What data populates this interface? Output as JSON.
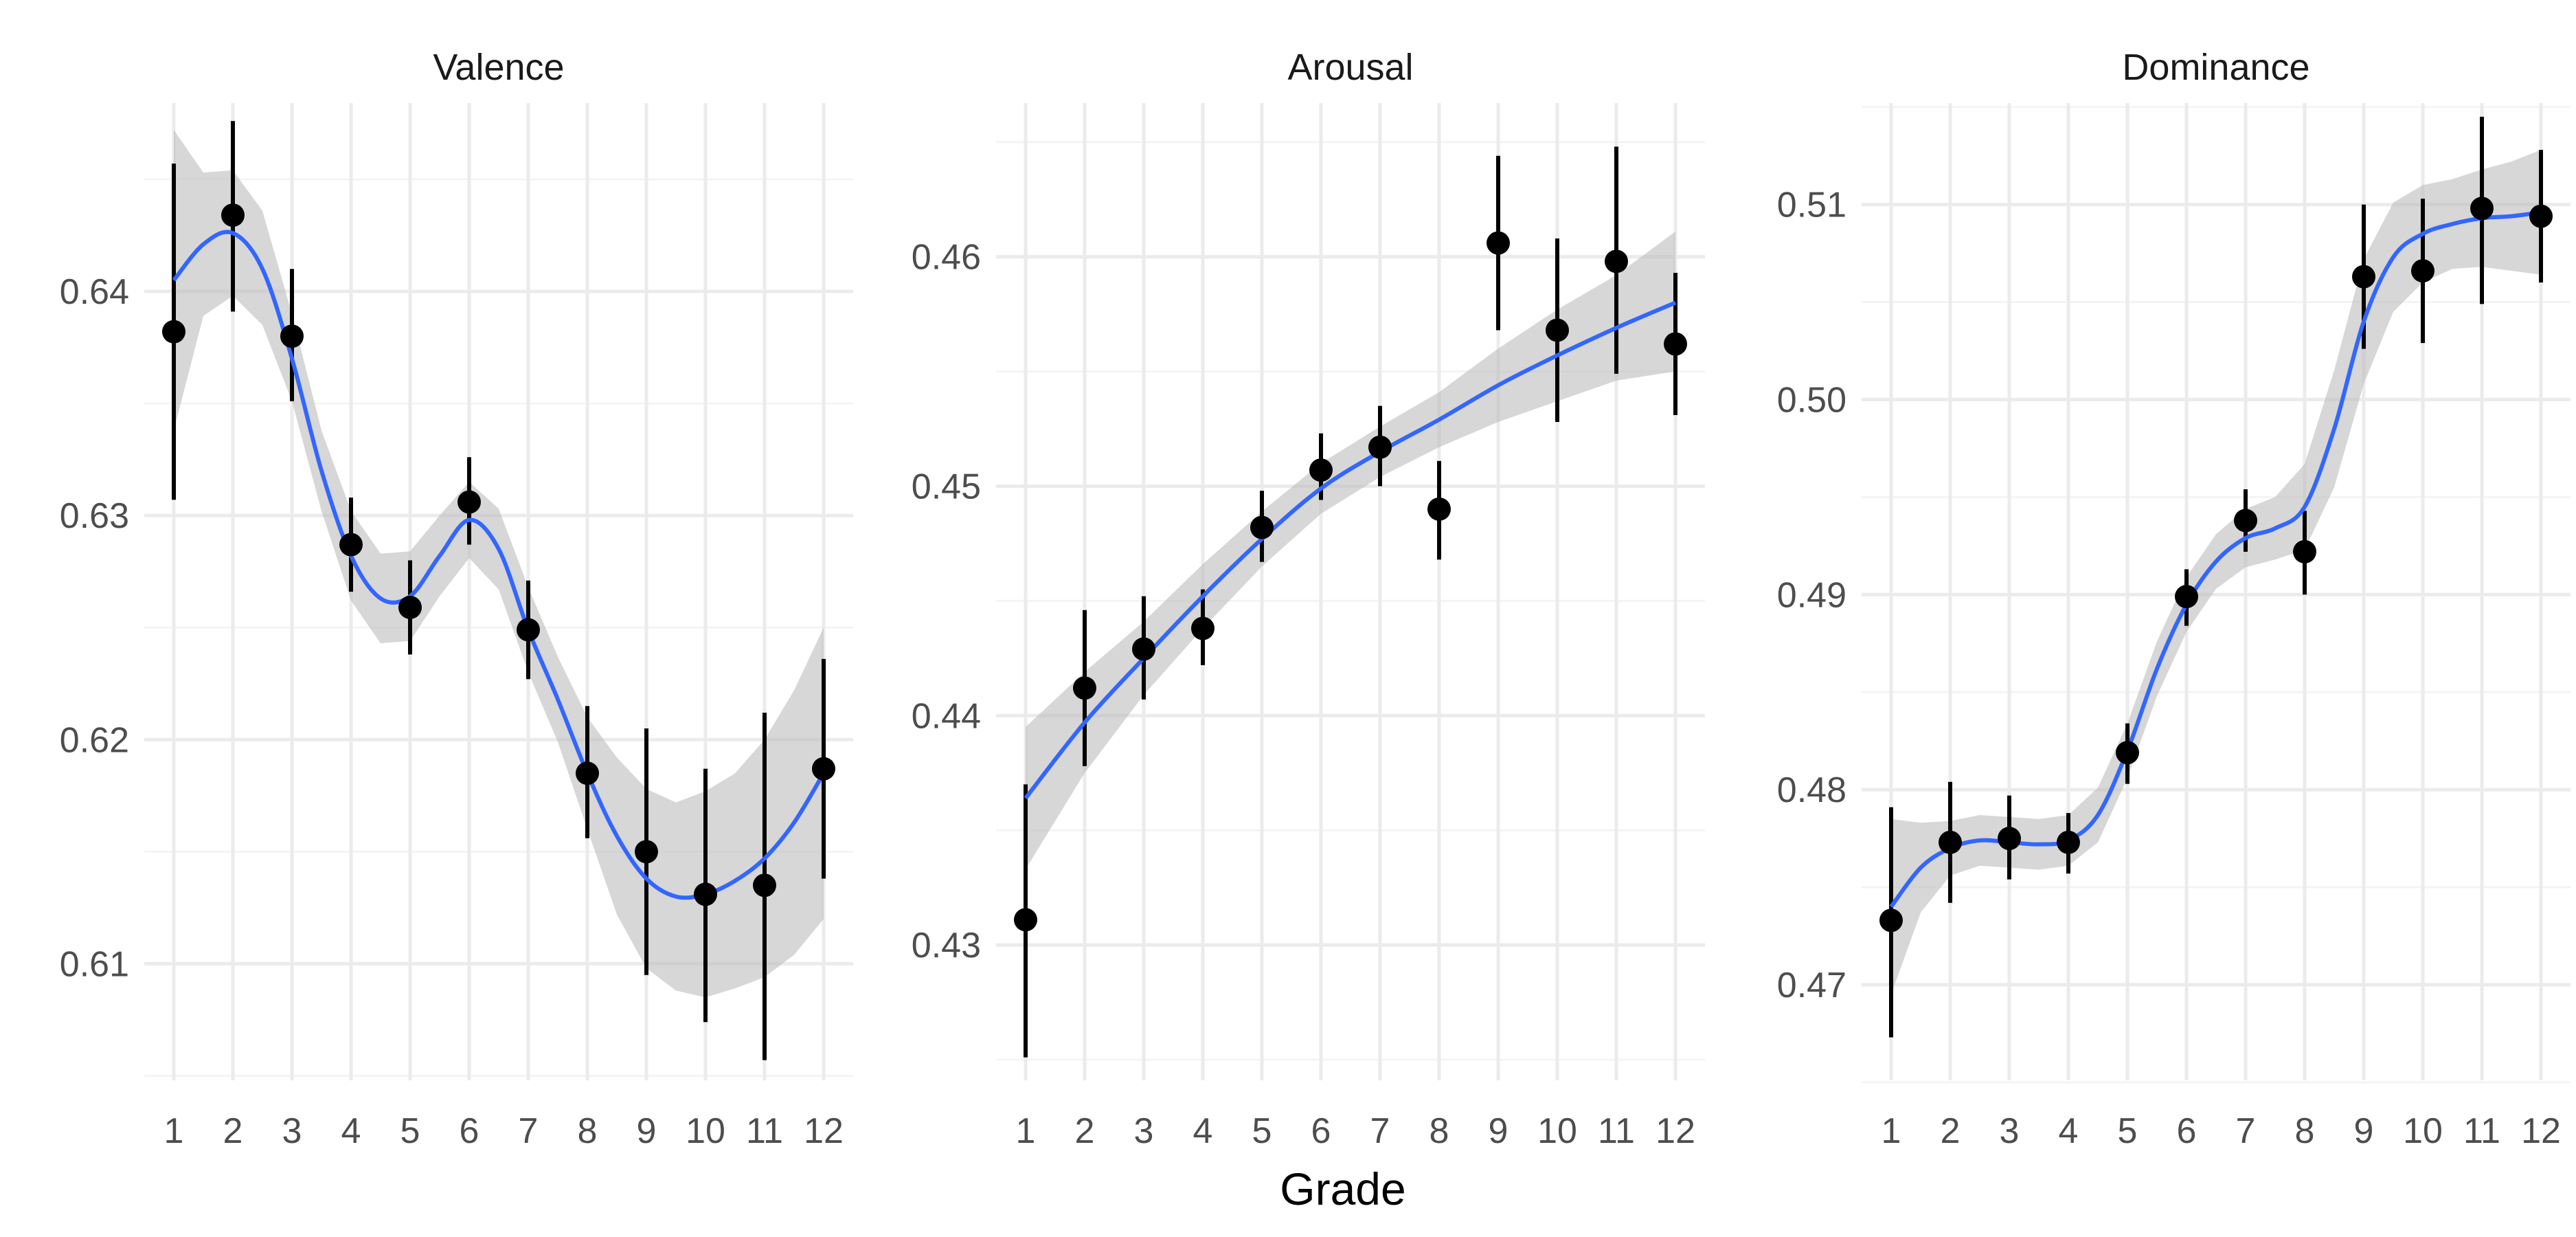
{
  "xlabel": "Grade",
  "colors": {
    "background": "#ffffff",
    "grid_major": "#ebebeb",
    "grid_minor": "#f4f4f4",
    "points": "#000000",
    "error_bars": "#000000",
    "smooth_line": "#3366ff",
    "ribbon": "#bdbdbd",
    "text": "#4d4d4d",
    "strip_text": "#1a1a1a"
  },
  "chart_data": [
    {
      "type": "scatter",
      "title": "Valence",
      "x": [
        1,
        2,
        3,
        4,
        5,
        6,
        7,
        8,
        9,
        10,
        11,
        12
      ],
      "x_tick_labels": [
        "1",
        "2",
        "3",
        "4",
        "5",
        "6",
        "7",
        "8",
        "9",
        "10",
        "11",
        "12"
      ],
      "xlim": [
        0.5,
        12.5
      ],
      "ylim": [
        0.6048,
        0.6484
      ],
      "y_ticks": [
        0.61,
        0.62,
        0.63,
        0.64
      ],
      "y_tick_labels": [
        "0.61",
        "0.62",
        "0.63",
        "0.64"
      ],
      "y_minor_ticks": [
        0.605,
        0.615,
        0.625,
        0.635,
        0.645
      ],
      "series": [
        {
          "kind": "points_with_error_bars",
          "values": [
            0.6382,
            0.6434,
            0.638,
            0.6287,
            0.6259,
            0.6306,
            0.6249,
            0.6185,
            0.615,
            0.6131,
            0.6135,
            0.6187
          ],
          "lower": [
            0.6307,
            0.6391,
            0.6351,
            0.6266,
            0.6238,
            0.6287,
            0.6227,
            0.6156,
            0.6095,
            0.6074,
            0.6057,
            0.6138
          ],
          "upper": [
            0.6457,
            0.6476,
            0.641,
            0.6308,
            0.628,
            0.6326,
            0.6271,
            0.6215,
            0.6205,
            0.6187,
            0.6212,
            0.6236
          ]
        },
        {
          "kind": "smooth_with_ribbon",
          "x": [
            1,
            1.5,
            2,
            2.5,
            3,
            3.5,
            4,
            4.5,
            5,
            5.5,
            6,
            6.5,
            7,
            7.5,
            8,
            8.5,
            9,
            9.5,
            10,
            10.5,
            11,
            11.5,
            12
          ],
          "values": [
            0.6405,
            0.6421,
            0.6426,
            0.641,
            0.637,
            0.632,
            0.6282,
            0.6263,
            0.6264,
            0.6282,
            0.6298,
            0.6285,
            0.6249,
            0.6218,
            0.6185,
            0.6157,
            0.6138,
            0.613,
            0.6131,
            0.6137,
            0.6147,
            0.6163,
            0.6185
          ],
          "lower": [
            0.6338,
            0.6389,
            0.6398,
            0.6385,
            0.6351,
            0.6302,
            0.6262,
            0.6243,
            0.6244,
            0.6264,
            0.6281,
            0.6267,
            0.623,
            0.6199,
            0.616,
            0.6122,
            0.6098,
            0.6088,
            0.6085,
            0.6089,
            0.6094,
            0.6104,
            0.612
          ],
          "upper": [
            0.6472,
            0.6453,
            0.6454,
            0.6436,
            0.639,
            0.6338,
            0.6302,
            0.6283,
            0.6284,
            0.63,
            0.6315,
            0.6303,
            0.6268,
            0.6237,
            0.621,
            0.6192,
            0.6178,
            0.6172,
            0.6177,
            0.6185,
            0.62,
            0.6222,
            0.625
          ]
        }
      ]
    },
    {
      "type": "scatter",
      "title": "Arousal",
      "x": [
        1,
        2,
        3,
        4,
        5,
        6,
        7,
        8,
        9,
        10,
        11,
        12
      ],
      "x_tick_labels": [
        "1",
        "2",
        "3",
        "4",
        "5",
        "6",
        "7",
        "8",
        "9",
        "10",
        "11",
        "12"
      ],
      "xlim": [
        0.5,
        12.5
      ],
      "ylim": [
        0.4241,
        0.4667
      ],
      "y_ticks": [
        0.43,
        0.44,
        0.45,
        0.46
      ],
      "y_tick_labels": [
        "0.43",
        "0.44",
        "0.45",
        "0.46"
      ],
      "y_minor_ticks": [
        0.425,
        0.435,
        0.445,
        0.455,
        0.465
      ],
      "series": [
        {
          "kind": "points_with_error_bars",
          "values": [
            0.4311,
            0.4412,
            0.4429,
            0.4438,
            0.4482,
            0.4507,
            0.4517,
            0.449,
            0.4606,
            0.4568,
            0.4598,
            0.4562
          ],
          "lower": [
            0.4251,
            0.4378,
            0.4407,
            0.4422,
            0.4467,
            0.4494,
            0.45,
            0.4468,
            0.4568,
            0.4528,
            0.4549,
            0.4531
          ],
          "upper": [
            0.437,
            0.4446,
            0.4452,
            0.4455,
            0.4498,
            0.4523,
            0.4535,
            0.4511,
            0.4644,
            0.4608,
            0.4648,
            0.4593
          ]
        },
        {
          "kind": "smooth_with_ribbon",
          "x": [
            1,
            2,
            3,
            4,
            5,
            6,
            7,
            8,
            9,
            10,
            11,
            12
          ],
          "values": [
            0.4364,
            0.4397,
            0.4425,
            0.4452,
            0.4477,
            0.4499,
            0.4515,
            0.4529,
            0.4544,
            0.4557,
            0.4569,
            0.458
          ],
          "lower": [
            0.4333,
            0.4375,
            0.4409,
            0.4438,
            0.4465,
            0.4488,
            0.4504,
            0.4517,
            0.4528,
            0.4537,
            0.4546,
            0.455
          ],
          "upper": [
            0.4395,
            0.4419,
            0.4441,
            0.4466,
            0.4489,
            0.451,
            0.4526,
            0.4541,
            0.456,
            0.4577,
            0.4592,
            0.4611
          ]
        }
      ]
    },
    {
      "type": "scatter",
      "title": "Dominance",
      "x": [
        1,
        2,
        3,
        4,
        5,
        6,
        7,
        8,
        9,
        10,
        11,
        12
      ],
      "x_tick_labels": [
        "1",
        "2",
        "3",
        "4",
        "5",
        "6",
        "7",
        "8",
        "9",
        "10",
        "11",
        "12"
      ],
      "xlim": [
        0.5,
        12.5
      ],
      "ylim": [
        0.4651,
        0.5152
      ],
      "y_ticks": [
        0.47,
        0.48,
        0.49,
        0.5,
        0.51
      ],
      "y_tick_labels": [
        "0.47",
        "0.48",
        "0.49",
        "0.50",
        "0.51"
      ],
      "y_minor_ticks": [
        0.465,
        0.475,
        0.485,
        0.495,
        0.505,
        0.515
      ],
      "series": [
        {
          "kind": "points_with_error_bars",
          "values": [
            0.4733,
            0.4773,
            0.4775,
            0.4773,
            0.4819,
            0.4899,
            0.4938,
            0.4922,
            0.5063,
            0.5066,
            0.5098,
            0.5094
          ],
          "lower": [
            0.4673,
            0.4742,
            0.4754,
            0.4757,
            0.4803,
            0.4884,
            0.4922,
            0.49,
            0.5026,
            0.5029,
            0.5049,
            0.506
          ],
          "upper": [
            0.4791,
            0.4804,
            0.4797,
            0.4788,
            0.4834,
            0.4913,
            0.4954,
            0.4943,
            0.51,
            0.5103,
            0.5145,
            0.5128
          ]
        },
        {
          "kind": "smooth_with_ribbon",
          "x": [
            1,
            1.5,
            2,
            2.5,
            3,
            3.5,
            4,
            4.5,
            5,
            5.5,
            6,
            6.5,
            7,
            7.5,
            8,
            8.5,
            9,
            9.5,
            10,
            10.5,
            11,
            11.5,
            12
          ],
          "values": [
            0.474,
            0.476,
            0.477,
            0.4774,
            0.4773,
            0.4772,
            0.4774,
            0.4787,
            0.482,
            0.4862,
            0.4895,
            0.4917,
            0.4929,
            0.4934,
            0.4945,
            0.4985,
            0.504,
            0.5073,
            0.5085,
            0.509,
            0.5093,
            0.5094,
            0.5096
          ],
          "lower": [
            0.4695,
            0.4737,
            0.4756,
            0.4761,
            0.476,
            0.4759,
            0.4761,
            0.4773,
            0.4806,
            0.4848,
            0.4881,
            0.4903,
            0.4914,
            0.4918,
            0.4923,
            0.4955,
            0.5008,
            0.5045,
            0.506,
            0.5067,
            0.5068,
            0.5066,
            0.5064
          ],
          "upper": [
            0.4785,
            0.4783,
            0.4784,
            0.4787,
            0.4786,
            0.4785,
            0.4787,
            0.4801,
            0.4834,
            0.4876,
            0.4909,
            0.4931,
            0.4944,
            0.495,
            0.4967,
            0.5015,
            0.5072,
            0.5101,
            0.511,
            0.5113,
            0.5118,
            0.5122,
            0.5128
          ]
        }
      ]
    }
  ]
}
